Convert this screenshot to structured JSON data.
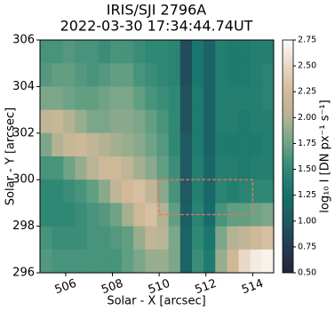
{
  "chart_data": {
    "type": "image",
    "title": [
      "IRIS/SJI 2796A",
      "2022-03-30 17:34:44.74UT"
    ],
    "x_label": "Solar - X [arcsec]",
    "y_label": "Solar - Y [arcsec]",
    "xlim": [
      504.9,
      514.9
    ],
    "ylim": [
      296,
      306
    ],
    "xticks": [
      506,
      508,
      510,
      512,
      514
    ],
    "yticks": [
      296,
      298,
      300,
      302,
      304,
      306
    ],
    "z": [
      [
        1.6,
        1.6,
        1.65,
        1.6,
        1.6,
        1.55,
        1.6,
        1.6,
        1.55,
        1.5,
        1.5,
        1.45,
        0.9,
        1.3,
        1.1,
        1.4,
        1.35,
        1.35,
        1.4,
        1.4
      ],
      [
        1.65,
        1.7,
        1.7,
        1.65,
        1.6,
        1.65,
        1.7,
        1.7,
        1.6,
        1.55,
        1.5,
        1.45,
        0.9,
        1.3,
        1.1,
        1.4,
        1.35,
        1.35,
        1.4,
        1.45
      ],
      [
        1.8,
        1.8,
        1.75,
        1.7,
        1.7,
        1.75,
        1.8,
        1.8,
        1.7,
        1.6,
        1.55,
        1.5,
        0.95,
        1.35,
        1.1,
        1.4,
        1.4,
        1.4,
        1.4,
        1.45
      ],
      [
        2.1,
        2.15,
        2.0,
        1.9,
        1.8,
        1.8,
        1.85,
        1.85,
        1.8,
        1.7,
        1.6,
        1.5,
        0.95,
        1.35,
        1.1,
        1.4,
        1.4,
        1.35,
        1.4,
        1.4
      ],
      [
        1.8,
        2.0,
        2.15,
        2.2,
        2.1,
        2.0,
        1.95,
        1.9,
        1.85,
        1.75,
        1.65,
        1.5,
        1.0,
        1.35,
        1.1,
        1.35,
        1.35,
        1.35,
        1.35,
        1.4
      ],
      [
        1.6,
        1.6,
        1.75,
        1.9,
        2.05,
        2.2,
        2.2,
        2.1,
        1.95,
        1.85,
        1.7,
        1.55,
        1.0,
        1.4,
        1.15,
        1.4,
        1.4,
        1.35,
        1.4,
        1.4
      ],
      [
        1.5,
        1.5,
        1.55,
        1.6,
        1.7,
        1.85,
        2.1,
        2.25,
        2.3,
        2.1,
        1.85,
        1.6,
        1.0,
        1.4,
        1.15,
        1.45,
        1.4,
        1.45,
        1.5,
        1.5
      ],
      [
        1.5,
        1.5,
        1.5,
        1.55,
        1.6,
        1.65,
        1.75,
        1.95,
        2.2,
        2.3,
        2.0,
        1.7,
        1.05,
        1.45,
        1.2,
        1.6,
        1.7,
        1.7,
        1.75,
        1.8
      ],
      [
        1.6,
        1.55,
        1.55,
        1.55,
        1.6,
        1.6,
        1.65,
        1.7,
        1.9,
        2.1,
        2.05,
        1.8,
        1.1,
        1.5,
        1.3,
        1.8,
        2.0,
        2.1,
        2.2,
        2.3
      ],
      [
        1.65,
        1.6,
        1.6,
        1.6,
        1.6,
        1.6,
        1.6,
        1.7,
        1.8,
        1.9,
        1.9,
        1.8,
        1.1,
        1.55,
        1.35,
        1.9,
        2.2,
        2.5,
        2.65,
        2.7
      ]
    ],
    "clim": [
      0.5,
      2.75
    ],
    "colormap": [
      "#222538",
      "#253a52",
      "#1f5961",
      "#15716d",
      "#2f8874",
      "#6ea386",
      "#b3b394",
      "#d3b998",
      "#e9d8c6",
      "#fcf9f6"
    ],
    "colorbar_label": "log₁₀ I [DN px⁻¹ s⁻¹]",
    "colorbar_ticks": [
      {
        "value": 0.5,
        "label": "0.50"
      },
      {
        "value": 0.75,
        "label": "0.75"
      },
      {
        "value": 1.0,
        "label": "1.00"
      },
      {
        "value": 1.25,
        "label": "1.25"
      },
      {
        "value": 1.5,
        "label": "1.50"
      },
      {
        "value": 1.75,
        "label": "1.75"
      },
      {
        "value": 2.0,
        "label": "2.00"
      },
      {
        "value": 2.25,
        "label": "2.25"
      },
      {
        "value": 2.5,
        "label": "2.50"
      },
      {
        "value": 2.75,
        "label": "2.75"
      }
    ],
    "annotations": [
      {
        "type": "rect",
        "x": [
          510,
          514
        ],
        "y": [
          298.5,
          300
        ],
        "color": "#e8735a"
      }
    ]
  }
}
